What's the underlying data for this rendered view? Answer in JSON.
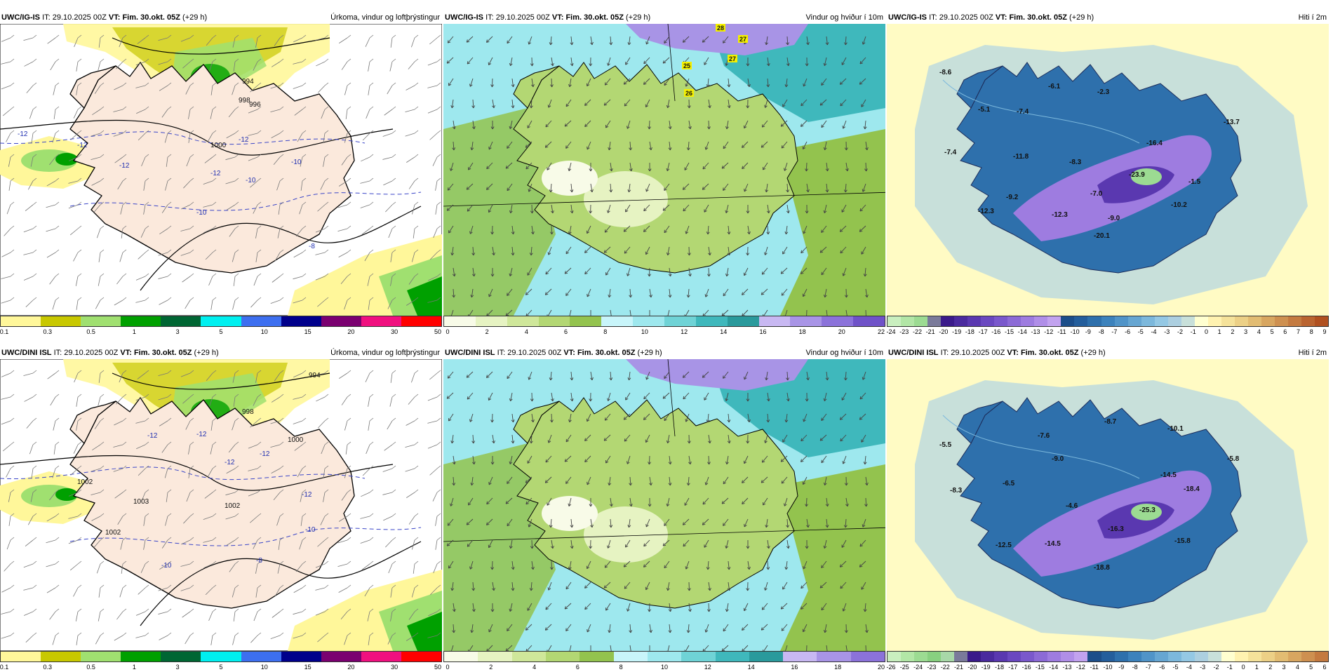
{
  "panels": [
    {
      "id": "igis-precip",
      "model": "UWC/IG-IS",
      "it_label": "IT:",
      "it_value": "29.10.2025 00Z",
      "vt_label": "VT:",
      "vt_value": "Fim. 30.okt. 05Z",
      "lead": "(+29 h)",
      "product": "Úrkoma, vindur og loftþrýstingur",
      "colorbar": {
        "colors": [
          "#fff79a",
          "#c8c800",
          "#a0e070",
          "#00a000",
          "#006633",
          "#00f0f0",
          "#3d6ff0",
          "#00008b",
          "#7a0070",
          "#f0107f",
          "#ff0000"
        ],
        "ticks": [
          "0.1",
          "0.3",
          "0.5",
          "1",
          "3",
          "5",
          "10",
          "15",
          "20",
          "30",
          "50"
        ]
      },
      "labels": {
        "pressure": [
          "1000",
          "998",
          "994",
          "996"
        ],
        "temp": [
          "-12",
          "-12",
          "-12",
          "-12",
          "-12",
          "-10",
          "-10",
          "-10",
          "-8"
        ]
      }
    },
    {
      "id": "igis-wind",
      "model": "UWC/IG-IS",
      "it_label": "IT:",
      "it_value": "29.10.2025 00Z",
      "vt_label": "VT:",
      "vt_value": "Fim. 30.okt. 05Z",
      "lead": "(+29 h)",
      "product": "Vindur og hviður í 10m",
      "colorbar": {
        "colors": [
          "#f8fbe8",
          "#e6f3c2",
          "#cfe79a",
          "#b3d773",
          "#93c34e",
          "#c8f5fa",
          "#9ee8ee",
          "#6fd3d6",
          "#3fb8bc",
          "#2a9a9c",
          "#c8b8f2",
          "#a894e6",
          "#8b72da",
          "#6f52c8"
        ],
        "ticks": [
          "0",
          "2",
          "4",
          "6",
          "8",
          "10",
          "12",
          "14",
          "16",
          "18",
          "20",
          "22"
        ]
      },
      "gusts": [
        "28",
        "27",
        "27",
        "25",
        "26"
      ]
    },
    {
      "id": "igis-temp",
      "model": "UWC/IG-IS",
      "it_label": "IT:",
      "it_value": "29.10.2025 00Z",
      "vt_label": "VT:",
      "vt_value": "Fim. 30.okt. 05Z",
      "lead": "(+29 h)",
      "product": "Hiti í 2m",
      "colorbar": {
        "colors": [
          "#c9efbf",
          "#b2e6a6",
          "#9cdb92",
          "#7a7a9a",
          "#3a1a8a",
          "#4a2a9e",
          "#5a38b0",
          "#6a48c0",
          "#7a58cc",
          "#8c6ad6",
          "#9e7ce0",
          "#b08ee8",
          "#c2a2ef",
          "#1c4e8a",
          "#245e9c",
          "#2e70ac",
          "#3c82bc",
          "#5094c8",
          "#66a6d2",
          "#7cb8dc",
          "#94c8e4",
          "#accfe0",
          "#c8e0da",
          "#ffffd0",
          "#fff2b0",
          "#f5e29a",
          "#ecd086",
          "#e2bc72",
          "#d8a660",
          "#ce9050",
          "#c47a40",
          "#ba6430",
          "#b05020"
        ],
        "ticks": [
          "-24",
          "-23",
          "-22",
          "-21",
          "-20",
          "-19",
          "-18",
          "-17",
          "-16",
          "-15",
          "-14",
          "-13",
          "-12",
          "-11",
          "-10",
          "-9",
          "-8",
          "-7",
          "-6",
          "-5",
          "-4",
          "-3",
          "-2",
          "-1",
          "0",
          "1",
          "2",
          "3",
          "4",
          "5",
          "6",
          "7",
          "8",
          "9"
        ]
      },
      "values": [
        "-8.6",
        "-6.1",
        "-2.3",
        "-7.4",
        "-5.1",
        "-13.7",
        "-16.4",
        "-7.4",
        "-11.8",
        "-8.3",
        "-23.9",
        "-1.5",
        "-7.0",
        "-9.2",
        "-10.2",
        "-12.3",
        "-12.3",
        "-9.0",
        "-20.1"
      ]
    },
    {
      "id": "dini-precip",
      "model": "UWC/DINI ISL",
      "it_label": "IT:",
      "it_value": "29.10.2025 00Z",
      "vt_label": "VT:",
      "vt_value": "Fim. 30.okt. 05Z",
      "lead": "(+29 h)",
      "product": "Úrkoma, vindur og loftþrýstingur",
      "colorbar": {
        "colors": [
          "#fff79a",
          "#c8c800",
          "#a0e070",
          "#00a000",
          "#006633",
          "#00f0f0",
          "#3d6ff0",
          "#00008b",
          "#7a0070",
          "#f0107f",
          "#ff0000"
        ],
        "ticks": [
          "0.1",
          "0.3",
          "0.5",
          "1",
          "3",
          "5",
          "10",
          "15",
          "20",
          "30",
          "50"
        ]
      },
      "labels": {
        "pressure": [
          "1002",
          "1002",
          "1003",
          "1002",
          "998",
          "1000",
          "994"
        ],
        "temp": [
          "-12",
          "-12",
          "-12",
          "-12",
          "-12",
          "-10",
          "-10",
          "-8"
        ]
      }
    },
    {
      "id": "dini-wind",
      "model": "UWC/DINI ISL",
      "it_label": "IT:",
      "it_value": "29.10.2025 00Z",
      "vt_label": "VT:",
      "vt_value": "Fim. 30.okt. 05Z",
      "lead": "(+29 h)",
      "product": "Vindur og hviður í 10m",
      "colorbar": {
        "colors": [
          "#f8fbe8",
          "#e6f3c2",
          "#cfe79a",
          "#b3d773",
          "#93c34e",
          "#c8f5fa",
          "#9ee8ee",
          "#6fd3d6",
          "#3fb8bc",
          "#2a9a9c",
          "#c8b8f2",
          "#a894e6",
          "#8b72da"
        ],
        "ticks": [
          "0",
          "2",
          "4",
          "6",
          "8",
          "10",
          "12",
          "14",
          "16",
          "18",
          "20"
        ]
      },
      "gusts": []
    },
    {
      "id": "dini-temp",
      "model": "UWC/DINI ISL",
      "it_label": "IT:",
      "it_value": "29.10.2025 00Z",
      "vt_label": "VT:",
      "vt_value": "Fim. 30.okt. 05Z",
      "lead": "(+29 h)",
      "product": "Hiti í 2m",
      "colorbar": {
        "colors": [
          "#c9efbf",
          "#b2e6a6",
          "#9cdb92",
          "#88d080",
          "#a8d8a8",
          "#7a7a9a",
          "#3a1a8a",
          "#4a2a9e",
          "#5a38b0",
          "#6a48c0",
          "#7a58cc",
          "#8c6ad6",
          "#9e7ce0",
          "#b08ee8",
          "#c2a2ef",
          "#1c4e8a",
          "#245e9c",
          "#2e70ac",
          "#3c82bc",
          "#5094c8",
          "#66a6d2",
          "#7cb8dc",
          "#94c8e4",
          "#accfe0",
          "#c8e0da",
          "#ffffd0",
          "#fff2b0",
          "#f5e29a",
          "#ecd086",
          "#e2bc72",
          "#d8a660",
          "#ce9050",
          "#c47a40"
        ],
        "ticks": [
          "-26",
          "-25",
          "-24",
          "-23",
          "-22",
          "-21",
          "-20",
          "-19",
          "-18",
          "-17",
          "-16",
          "-15",
          "-14",
          "-13",
          "-12",
          "-11",
          "-10",
          "-9",
          "-8",
          "-7",
          "-6",
          "-5",
          "-4",
          "-3",
          "-2",
          "-1",
          "0",
          "1",
          "2",
          "3",
          "4",
          "5",
          "6"
        ]
      },
      "values": [
        "-8.7",
        "-7.6",
        "-10.1",
        "-5.5",
        "-9.0",
        "-5.8",
        "-14.5",
        "-6.5",
        "-8.3",
        "-18.4",
        "-4.6",
        "-25.3",
        "-16.3",
        "-14.5",
        "-12.5",
        "-15.8",
        "-18.8"
      ]
    }
  ]
}
